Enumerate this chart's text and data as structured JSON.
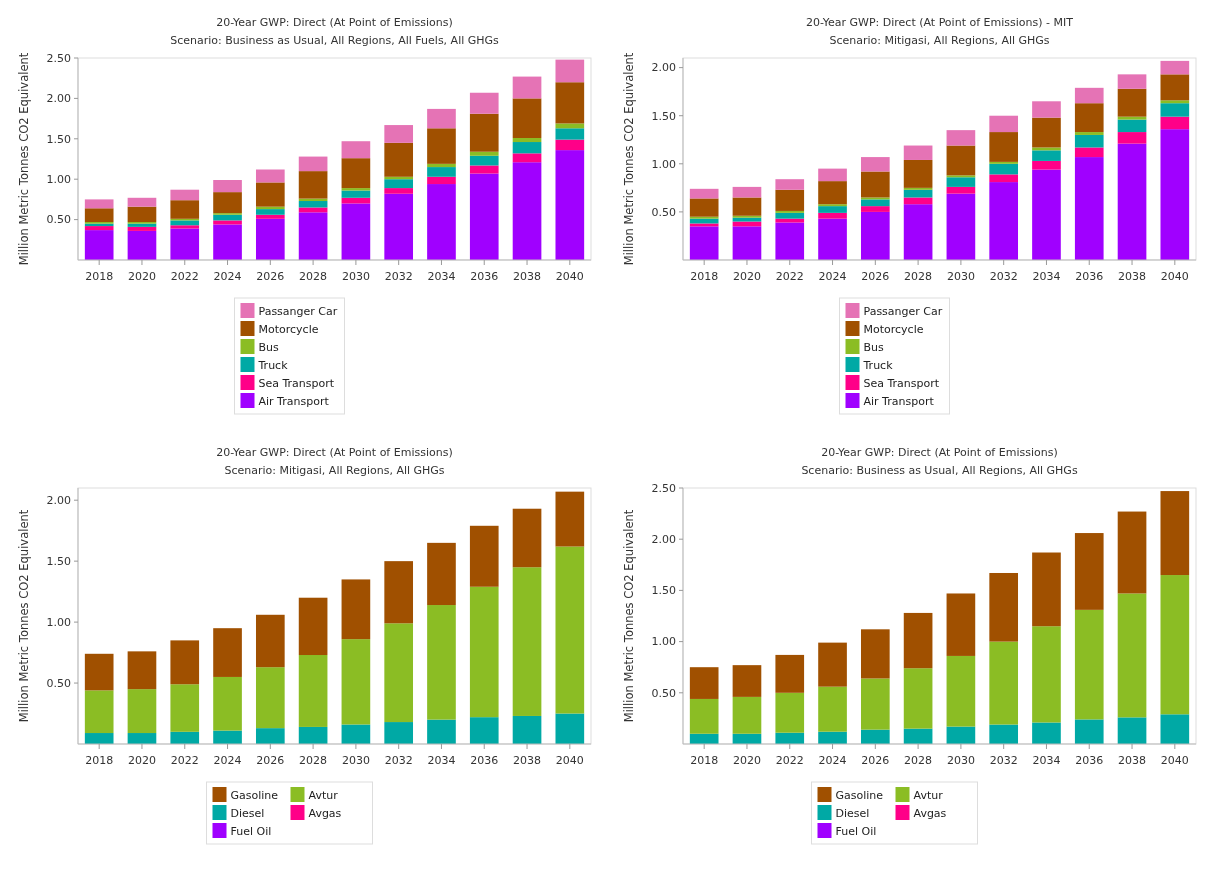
{
  "chart_data": [
    {
      "type": "bar",
      "stacked": true,
      "title": "20-Year GWP: Direct (At Point of Emissions)",
      "subtitle": "Scenario: Business as Usual, All Regions, All Fuels, All GHGs",
      "ylabel": "Million Metric Tonnes CO2 Equivalent",
      "categories": [
        "2018",
        "2020",
        "2022",
        "2024",
        "2026",
        "2028",
        "2030",
        "2032",
        "2034",
        "2036",
        "2038",
        "2040"
      ],
      "ylim": [
        0,
        2.5
      ],
      "yticks": [
        {
          "value": 0.5,
          "label": "0.50"
        },
        {
          "value": 1,
          "label": "1.00"
        },
        {
          "value": 1.5,
          "label": "1.50"
        },
        {
          "value": 2,
          "label": "2.00"
        },
        {
          "value": 2.5,
          "label": "2.50"
        }
      ],
      "legend": "bottom",
      "grid": false,
      "series": [
        {
          "name": "Air Transport",
          "color": "#a000ff",
          "values": [
            0.37,
            0.36,
            0.39,
            0.44,
            0.51,
            0.59,
            0.7,
            0.82,
            0.94,
            1.07,
            1.21,
            1.36
          ]
        },
        {
          "name": "Sea Transport",
          "color": "#ff0088",
          "values": [
            0.05,
            0.05,
            0.04,
            0.05,
            0.05,
            0.06,
            0.07,
            0.07,
            0.09,
            0.1,
            0.11,
            0.13
          ]
        },
        {
          "name": "Truck",
          "color": "#00a9a5",
          "values": [
            0.03,
            0.04,
            0.06,
            0.07,
            0.07,
            0.08,
            0.09,
            0.11,
            0.12,
            0.12,
            0.14,
            0.14
          ]
        },
        {
          "name": "Bus",
          "color": "#8bbd24",
          "values": [
            0.02,
            0.02,
            0.02,
            0.02,
            0.03,
            0.03,
            0.03,
            0.03,
            0.04,
            0.05,
            0.05,
            0.06
          ]
        },
        {
          "name": "Motorcycle",
          "color": "#a05000",
          "values": [
            0.17,
            0.19,
            0.23,
            0.26,
            0.3,
            0.34,
            0.37,
            0.42,
            0.44,
            0.47,
            0.49,
            0.51
          ]
        },
        {
          "name": "Passanger Car",
          "color": "#e573b5",
          "values": [
            0.11,
            0.11,
            0.13,
            0.15,
            0.16,
            0.18,
            0.21,
            0.22,
            0.24,
            0.26,
            0.27,
            0.28
          ]
        }
      ]
    },
    {
      "type": "bar",
      "stacked": true,
      "title": "20-Year GWP: Direct (At Point of Emissions) - MIT",
      "subtitle": "Scenario: Mitigasi, All Regions, All GHGs",
      "ylabel": "Million Metric Tonnes CO2 Equivalent",
      "categories": [
        "2018",
        "2020",
        "2022",
        "2024",
        "2026",
        "2028",
        "2030",
        "2032",
        "2034",
        "2036",
        "2038",
        "2040"
      ],
      "ylim": [
        0,
        2.1
      ],
      "yticks": [
        {
          "value": 0.5,
          "label": "0.50"
        },
        {
          "value": 1,
          "label": "1.00"
        },
        {
          "value": 1.5,
          "label": "1.50"
        },
        {
          "value": 2,
          "label": "2.00"
        }
      ],
      "legend": "bottom",
      "grid": false,
      "series": [
        {
          "name": "Air Transport",
          "color": "#a000ff",
          "values": [
            0.35,
            0.35,
            0.39,
            0.43,
            0.5,
            0.58,
            0.69,
            0.81,
            0.94,
            1.07,
            1.21,
            1.36
          ]
        },
        {
          "name": "Sea Transport",
          "color": "#ff0088",
          "values": [
            0.03,
            0.05,
            0.04,
            0.06,
            0.06,
            0.07,
            0.07,
            0.08,
            0.09,
            0.1,
            0.12,
            0.13
          ]
        },
        {
          "name": "Truck",
          "color": "#00a9a5",
          "values": [
            0.05,
            0.04,
            0.06,
            0.07,
            0.07,
            0.08,
            0.1,
            0.11,
            0.11,
            0.13,
            0.13,
            0.14
          ]
        },
        {
          "name": "Bus",
          "color": "#8bbd24",
          "values": [
            0.02,
            0.02,
            0.02,
            0.02,
            0.02,
            0.02,
            0.02,
            0.02,
            0.03,
            0.03,
            0.03,
            0.03
          ]
        },
        {
          "name": "Motorcycle",
          "color": "#a05000",
          "values": [
            0.19,
            0.19,
            0.22,
            0.24,
            0.27,
            0.29,
            0.31,
            0.31,
            0.31,
            0.3,
            0.29,
            0.27
          ]
        },
        {
          "name": "Passanger Car",
          "color": "#e573b5",
          "values": [
            0.1,
            0.11,
            0.11,
            0.13,
            0.15,
            0.15,
            0.16,
            0.17,
            0.17,
            0.16,
            0.15,
            0.14
          ]
        }
      ]
    },
    {
      "type": "bar",
      "stacked": true,
      "title": "20-Year GWP: Direct (At Point of Emissions)",
      "subtitle": "Scenario: Mitigasi, All Regions, All GHGs",
      "ylabel": "Million Metric Tonnes CO2 Equivalent",
      "categories": [
        "2018",
        "2020",
        "2022",
        "2024",
        "2026",
        "2028",
        "2030",
        "2032",
        "2034",
        "2036",
        "2038",
        "2040"
      ],
      "ylim": [
        0,
        2.1
      ],
      "yticks": [
        {
          "value": 0.5,
          "label": "0.50"
        },
        {
          "value": 1,
          "label": "1.00"
        },
        {
          "value": 1.5,
          "label": "1.50"
        },
        {
          "value": 2,
          "label": "2.00"
        }
      ],
      "legend": "bottom",
      "grid": false,
      "series": [
        {
          "name": "Fuel Oil",
          "color": "#a000ff",
          "values": [
            null,
            null,
            null,
            null,
            null,
            null,
            null,
            null,
            null,
            null,
            null,
            null
          ]
        },
        {
          "name": "Avgas",
          "color": "#ff0088",
          "values": [
            null,
            null,
            null,
            null,
            null,
            null,
            null,
            null,
            null,
            null,
            null,
            null
          ]
        },
        {
          "name": "Diesel",
          "color": "#00a9a5",
          "values": [
            0.09,
            0.09,
            0.1,
            0.11,
            0.13,
            0.14,
            0.16,
            0.18,
            0.2,
            0.22,
            0.23,
            0.25
          ]
        },
        {
          "name": "Avtur",
          "color": "#8bbd24",
          "values": [
            0.35,
            0.36,
            0.39,
            0.44,
            0.5,
            0.59,
            0.7,
            0.81,
            0.94,
            1.07,
            1.22,
            1.37
          ]
        },
        {
          "name": "Gasoline",
          "color": "#a05000",
          "values": [
            0.3,
            0.31,
            0.36,
            0.4,
            0.43,
            0.47,
            0.49,
            0.51,
            0.51,
            0.5,
            0.48,
            0.45
          ]
        }
      ]
    },
    {
      "type": "bar",
      "stacked": true,
      "title": "20-Year GWP: Direct (At Point of Emissions)",
      "subtitle": "Scenario: Business as Usual, All Regions, All GHGs",
      "ylabel": "Million Metric Tonnes CO2 Equivalent",
      "categories": [
        "2018",
        "2020",
        "2022",
        "2024",
        "2026",
        "2028",
        "2030",
        "2032",
        "2034",
        "2036",
        "2038",
        "2040"
      ],
      "ylim": [
        0,
        2.5
      ],
      "yticks": [
        {
          "value": 0.5,
          "label": "0.50"
        },
        {
          "value": 1,
          "label": "1.00"
        },
        {
          "value": 1.5,
          "label": "1.50"
        },
        {
          "value": 2,
          "label": "2.00"
        },
        {
          "value": 2.5,
          "label": "2.50"
        }
      ],
      "legend": "bottom",
      "grid": false,
      "series": [
        {
          "name": "Fuel Oil",
          "color": "#a000ff",
          "values": [
            null,
            null,
            null,
            null,
            null,
            null,
            null,
            null,
            null,
            null,
            null,
            null
          ]
        },
        {
          "name": "Avgas",
          "color": "#ff0088",
          "values": [
            null,
            null,
            null,
            null,
            null,
            null,
            null,
            null,
            null,
            null,
            null,
            null
          ]
        },
        {
          "name": "Diesel",
          "color": "#00a9a5",
          "values": [
            0.1,
            0.1,
            0.11,
            0.12,
            0.14,
            0.15,
            0.17,
            0.19,
            0.21,
            0.24,
            0.26,
            0.29
          ]
        },
        {
          "name": "Avtur",
          "color": "#8bbd24",
          "values": [
            0.34,
            0.36,
            0.39,
            0.44,
            0.5,
            0.59,
            0.69,
            0.81,
            0.94,
            1.07,
            1.21,
            1.36
          ]
        },
        {
          "name": "Gasoline",
          "color": "#a05000",
          "values": [
            0.31,
            0.31,
            0.37,
            0.43,
            0.48,
            0.54,
            0.61,
            0.67,
            0.72,
            0.75,
            0.8,
            0.82
          ]
        }
      ]
    }
  ]
}
